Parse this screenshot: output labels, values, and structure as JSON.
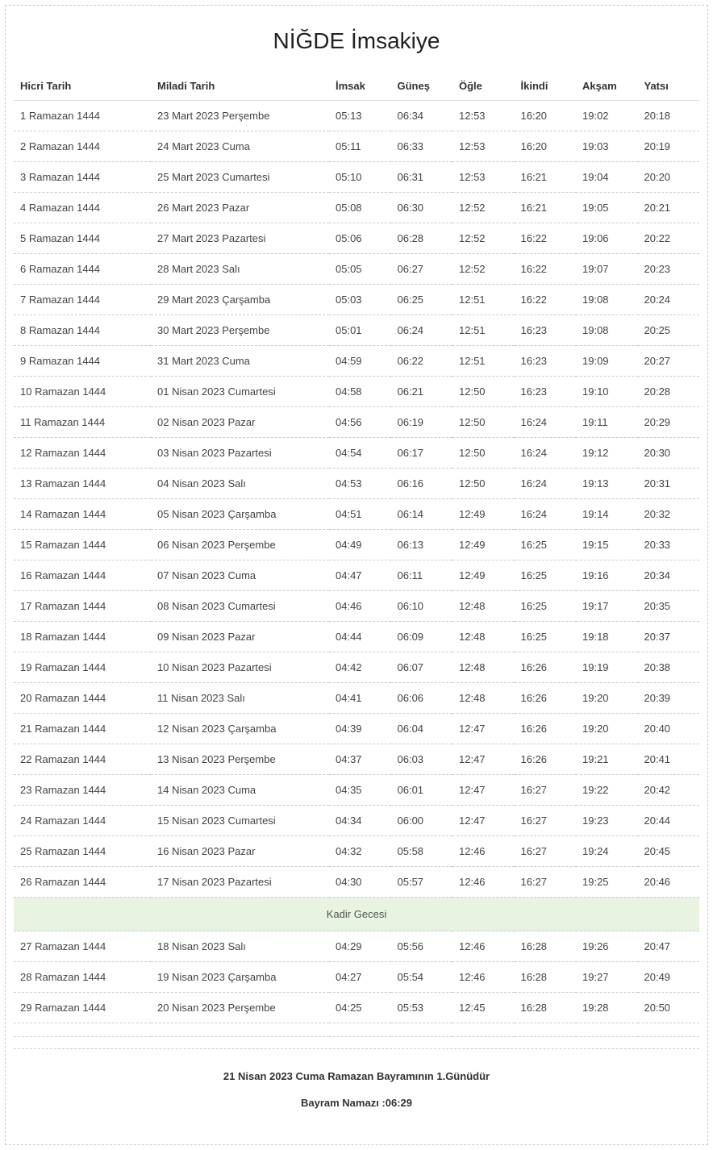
{
  "title": "NİĞDE İmsakiye",
  "columns": [
    "Hicri Tarih",
    "Miladi Tarih",
    "İmsak",
    "Güneş",
    "Öğle",
    "İkindi",
    "Akşam",
    "Yatsı"
  ],
  "special_label": "Kadir Gecesi",
  "special_bg": "#e8f3e1",
  "rows_before": [
    {
      "hicri": "1 Ramazan 1444",
      "miladi": "23 Mart 2023 Perşembe",
      "imsak": "05:13",
      "gunes": "06:34",
      "ogle": "12:53",
      "ikindi": "16:20",
      "aksam": "19:02",
      "yatsi": "20:18"
    },
    {
      "hicri": "2 Ramazan 1444",
      "miladi": "24 Mart 2023 Cuma",
      "imsak": "05:11",
      "gunes": "06:33",
      "ogle": "12:53",
      "ikindi": "16:20",
      "aksam": "19:03",
      "yatsi": "20:19"
    },
    {
      "hicri": "3 Ramazan 1444",
      "miladi": "25 Mart 2023 Cumartesi",
      "imsak": "05:10",
      "gunes": "06:31",
      "ogle": "12:53",
      "ikindi": "16:21",
      "aksam": "19:04",
      "yatsi": "20:20"
    },
    {
      "hicri": "4 Ramazan 1444",
      "miladi": "26 Mart 2023 Pazar",
      "imsak": "05:08",
      "gunes": "06:30",
      "ogle": "12:52",
      "ikindi": "16:21",
      "aksam": "19:05",
      "yatsi": "20:21"
    },
    {
      "hicri": "5 Ramazan 1444",
      "miladi": "27 Mart 2023 Pazartesi",
      "imsak": "05:06",
      "gunes": "06:28",
      "ogle": "12:52",
      "ikindi": "16:22",
      "aksam": "19:06",
      "yatsi": "20:22"
    },
    {
      "hicri": "6 Ramazan 1444",
      "miladi": "28 Mart 2023 Salı",
      "imsak": "05:05",
      "gunes": "06:27",
      "ogle": "12:52",
      "ikindi": "16:22",
      "aksam": "19:07",
      "yatsi": "20:23"
    },
    {
      "hicri": "7 Ramazan 1444",
      "miladi": "29 Mart 2023 Çarşamba",
      "imsak": "05:03",
      "gunes": "06:25",
      "ogle": "12:51",
      "ikindi": "16:22",
      "aksam": "19:08",
      "yatsi": "20:24"
    },
    {
      "hicri": "8 Ramazan 1444",
      "miladi": "30 Mart 2023 Perşembe",
      "imsak": "05:01",
      "gunes": "06:24",
      "ogle": "12:51",
      "ikindi": "16:23",
      "aksam": "19:08",
      "yatsi": "20:25"
    },
    {
      "hicri": "9 Ramazan 1444",
      "miladi": "31 Mart 2023 Cuma",
      "imsak": "04:59",
      "gunes": "06:22",
      "ogle": "12:51",
      "ikindi": "16:23",
      "aksam": "19:09",
      "yatsi": "20:27"
    },
    {
      "hicri": "10 Ramazan 1444",
      "miladi": "01 Nisan 2023 Cumartesi",
      "imsak": "04:58",
      "gunes": "06:21",
      "ogle": "12:50",
      "ikindi": "16:23",
      "aksam": "19:10",
      "yatsi": "20:28"
    },
    {
      "hicri": "11 Ramazan 1444",
      "miladi": "02 Nisan 2023 Pazar",
      "imsak": "04:56",
      "gunes": "06:19",
      "ogle": "12:50",
      "ikindi": "16:24",
      "aksam": "19:11",
      "yatsi": "20:29"
    },
    {
      "hicri": "12 Ramazan 1444",
      "miladi": "03 Nisan 2023 Pazartesi",
      "imsak": "04:54",
      "gunes": "06:17",
      "ogle": "12:50",
      "ikindi": "16:24",
      "aksam": "19:12",
      "yatsi": "20:30"
    },
    {
      "hicri": "13 Ramazan 1444",
      "miladi": "04 Nisan 2023 Salı",
      "imsak": "04:53",
      "gunes": "06:16",
      "ogle": "12:50",
      "ikindi": "16:24",
      "aksam": "19:13",
      "yatsi": "20:31"
    },
    {
      "hicri": "14 Ramazan 1444",
      "miladi": "05 Nisan 2023 Çarşamba",
      "imsak": "04:51",
      "gunes": "06:14",
      "ogle": "12:49",
      "ikindi": "16:24",
      "aksam": "19:14",
      "yatsi": "20:32"
    },
    {
      "hicri": "15 Ramazan 1444",
      "miladi": "06 Nisan 2023 Perşembe",
      "imsak": "04:49",
      "gunes": "06:13",
      "ogle": "12:49",
      "ikindi": "16:25",
      "aksam": "19:15",
      "yatsi": "20:33"
    },
    {
      "hicri": "16 Ramazan 1444",
      "miladi": "07 Nisan 2023 Cuma",
      "imsak": "04:47",
      "gunes": "06:11",
      "ogle": "12:49",
      "ikindi": "16:25",
      "aksam": "19:16",
      "yatsi": "20:34"
    },
    {
      "hicri": "17 Ramazan 1444",
      "miladi": "08 Nisan 2023 Cumartesi",
      "imsak": "04:46",
      "gunes": "06:10",
      "ogle": "12:48",
      "ikindi": "16:25",
      "aksam": "19:17",
      "yatsi": "20:35"
    },
    {
      "hicri": "18 Ramazan 1444",
      "miladi": "09 Nisan 2023 Pazar",
      "imsak": "04:44",
      "gunes": "06:09",
      "ogle": "12:48",
      "ikindi": "16:25",
      "aksam": "19:18",
      "yatsi": "20:37"
    },
    {
      "hicri": "19 Ramazan 1444",
      "miladi": "10 Nisan 2023 Pazartesi",
      "imsak": "04:42",
      "gunes": "06:07",
      "ogle": "12:48",
      "ikindi": "16:26",
      "aksam": "19:19",
      "yatsi": "20:38"
    },
    {
      "hicri": "20 Ramazan 1444",
      "miladi": "11 Nisan 2023 Salı",
      "imsak": "04:41",
      "gunes": "06:06",
      "ogle": "12:48",
      "ikindi": "16:26",
      "aksam": "19:20",
      "yatsi": "20:39"
    },
    {
      "hicri": "21 Ramazan 1444",
      "miladi": "12 Nisan 2023 Çarşamba",
      "imsak": "04:39",
      "gunes": "06:04",
      "ogle": "12:47",
      "ikindi": "16:26",
      "aksam": "19:20",
      "yatsi": "20:40"
    },
    {
      "hicri": "22 Ramazan 1444",
      "miladi": "13 Nisan 2023 Perşembe",
      "imsak": "04:37",
      "gunes": "06:03",
      "ogle": "12:47",
      "ikindi": "16:26",
      "aksam": "19:21",
      "yatsi": "20:41"
    },
    {
      "hicri": "23 Ramazan 1444",
      "miladi": "14 Nisan 2023 Cuma",
      "imsak": "04:35",
      "gunes": "06:01",
      "ogle": "12:47",
      "ikindi": "16:27",
      "aksam": "19:22",
      "yatsi": "20:42"
    },
    {
      "hicri": "24 Ramazan 1444",
      "miladi": "15 Nisan 2023 Cumartesi",
      "imsak": "04:34",
      "gunes": "06:00",
      "ogle": "12:47",
      "ikindi": "16:27",
      "aksam": "19:23",
      "yatsi": "20:44"
    },
    {
      "hicri": "25 Ramazan 1444",
      "miladi": "16 Nisan 2023 Pazar",
      "imsak": "04:32",
      "gunes": "05:58",
      "ogle": "12:46",
      "ikindi": "16:27",
      "aksam": "19:24",
      "yatsi": "20:45"
    },
    {
      "hicri": "26 Ramazan 1444",
      "miladi": "17 Nisan 2023 Pazartesi",
      "imsak": "04:30",
      "gunes": "05:57",
      "ogle": "12:46",
      "ikindi": "16:27",
      "aksam": "19:25",
      "yatsi": "20:46"
    }
  ],
  "rows_after": [
    {
      "hicri": "27 Ramazan 1444",
      "miladi": "18 Nisan 2023 Salı",
      "imsak": "04:29",
      "gunes": "05:56",
      "ogle": "12:46",
      "ikindi": "16:28",
      "aksam": "19:26",
      "yatsi": "20:47"
    },
    {
      "hicri": "28 Ramazan 1444",
      "miladi": "19 Nisan 2023 Çarşamba",
      "imsak": "04:27",
      "gunes": "05:54",
      "ogle": "12:46",
      "ikindi": "16:28",
      "aksam": "19:27",
      "yatsi": "20:49"
    },
    {
      "hicri": "29 Ramazan 1444",
      "miladi": "20 Nisan 2023 Perşembe",
      "imsak": "04:25",
      "gunes": "05:53",
      "ogle": "12:45",
      "ikindi": "16:28",
      "aksam": "19:28",
      "yatsi": "20:50"
    }
  ],
  "footer": {
    "line1": "21 Nisan 2023 Cuma Ramazan Bayramının 1.Günüdür",
    "line2": "Bayram Namazı :06:29"
  },
  "colors": {
    "border_dash": "#cccccc",
    "text": "#333333",
    "special_bg": "#e8f3e1"
  }
}
